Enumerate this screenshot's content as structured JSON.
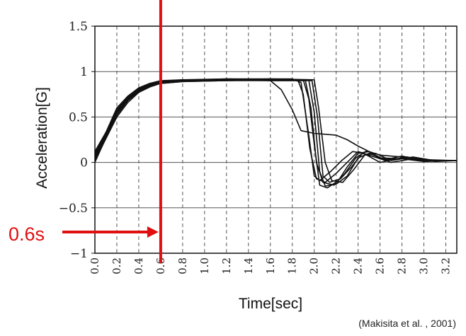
{
  "chart_data": {
    "type": "line",
    "xlabel": "Time[sec]",
    "ylabel": "Acceleration[G]",
    "xlim": [
      0,
      3.3
    ],
    "ylim": [
      -1,
      1.5
    ],
    "x_ticks": [
      "0.0",
      "0.2",
      "0.4",
      "0.6",
      "0.8",
      "1.0",
      "1.2",
      "1.4",
      "1.6",
      "1.8",
      "2.0",
      "2.2",
      "2.4",
      "2.6",
      "2.8",
      "3.0",
      "3.2"
    ],
    "y_ticks": [
      "1.5",
      "1",
      "0.5",
      "0",
      "-0.5",
      "-1"
    ],
    "grid": "dashed vertical every 0.2 s, solid horizontal every 0.5 G",
    "series": [
      {
        "values": [
          [
            0,
            0.05
          ],
          [
            0.1,
            0.3
          ],
          [
            0.2,
            0.55
          ],
          [
            0.3,
            0.7
          ],
          [
            0.4,
            0.8
          ],
          [
            0.5,
            0.85
          ],
          [
            0.6,
            0.88
          ],
          [
            0.8,
            0.9
          ],
          [
            1.0,
            0.9
          ],
          [
            1.4,
            0.91
          ],
          [
            1.6,
            0.9
          ],
          [
            1.7,
            0.8
          ],
          [
            1.8,
            0.58
          ],
          [
            1.88,
            0.35
          ],
          [
            2.0,
            0.32
          ],
          [
            2.1,
            0.31
          ],
          [
            2.2,
            0.3
          ],
          [
            2.3,
            0.25
          ],
          [
            2.4,
            0.18
          ],
          [
            2.5,
            0.12
          ],
          [
            2.6,
            0.08
          ],
          [
            2.8,
            0.06
          ],
          [
            3.0,
            0.03
          ],
          [
            3.3,
            0.02
          ]
        ]
      },
      {
        "values": [
          [
            0,
            0.1
          ],
          [
            0.1,
            0.32
          ],
          [
            0.2,
            0.58
          ],
          [
            0.3,
            0.72
          ],
          [
            0.4,
            0.82
          ],
          [
            0.5,
            0.86
          ],
          [
            0.6,
            0.88
          ],
          [
            0.8,
            0.9
          ],
          [
            1.2,
            0.92
          ],
          [
            1.6,
            0.92
          ],
          [
            1.8,
            0.92
          ],
          [
            1.88,
            0.88
          ],
          [
            1.95,
            0.3
          ],
          [
            2.0,
            -0.15
          ],
          [
            2.05,
            -0.2
          ],
          [
            2.15,
            -0.1
          ],
          [
            2.25,
            0.02
          ],
          [
            2.35,
            0.12
          ],
          [
            2.45,
            0.1
          ],
          [
            2.6,
            0.0
          ],
          [
            2.8,
            0.05
          ],
          [
            3.0,
            0.02
          ],
          [
            3.3,
            0.02
          ]
        ]
      },
      {
        "values": [
          [
            0,
            0.0
          ],
          [
            0.1,
            0.27
          ],
          [
            0.2,
            0.52
          ],
          [
            0.3,
            0.68
          ],
          [
            0.4,
            0.78
          ],
          [
            0.5,
            0.84
          ],
          [
            0.6,
            0.87
          ],
          [
            0.8,
            0.89
          ],
          [
            1.2,
            0.9
          ],
          [
            1.6,
            0.91
          ],
          [
            1.9,
            0.91
          ],
          [
            1.95,
            0.7
          ],
          [
            2.0,
            0.2
          ],
          [
            2.05,
            -0.25
          ],
          [
            2.12,
            -0.28
          ],
          [
            2.22,
            -0.2
          ],
          [
            2.3,
            -0.05
          ],
          [
            2.4,
            0.1
          ],
          [
            2.5,
            0.12
          ],
          [
            2.65,
            0.02
          ],
          [
            2.85,
            0.06
          ],
          [
            3.0,
            0.02
          ],
          [
            3.3,
            0.02
          ]
        ]
      },
      {
        "values": [
          [
            0,
            0.08
          ],
          [
            0.1,
            0.31
          ],
          [
            0.2,
            0.56
          ],
          [
            0.3,
            0.7
          ],
          [
            0.4,
            0.8
          ],
          [
            0.5,
            0.85
          ],
          [
            0.6,
            0.89
          ],
          [
            0.8,
            0.91
          ],
          [
            1.2,
            0.91
          ],
          [
            1.6,
            0.9
          ],
          [
            1.92,
            0.9
          ],
          [
            1.97,
            0.6
          ],
          [
            2.02,
            0.0
          ],
          [
            2.08,
            -0.22
          ],
          [
            2.18,
            -0.25
          ],
          [
            2.28,
            -0.12
          ],
          [
            2.38,
            0.05
          ],
          [
            2.48,
            0.13
          ],
          [
            2.6,
            0.05
          ],
          [
            2.8,
            0.04
          ],
          [
            3.0,
            0.01
          ],
          [
            3.3,
            0.02
          ]
        ]
      },
      {
        "values": [
          [
            0,
            0.04
          ],
          [
            0.1,
            0.29
          ],
          [
            0.2,
            0.54
          ],
          [
            0.3,
            0.69
          ],
          [
            0.4,
            0.79
          ],
          [
            0.5,
            0.85
          ],
          [
            0.6,
            0.88
          ],
          [
            0.8,
            0.9
          ],
          [
            1.2,
            0.9
          ],
          [
            1.6,
            0.91
          ],
          [
            1.95,
            0.91
          ],
          [
            2.0,
            0.55
          ],
          [
            2.05,
            -0.1
          ],
          [
            2.1,
            -0.26
          ],
          [
            2.2,
            -0.24
          ],
          [
            2.3,
            -0.15
          ],
          [
            2.4,
            0.05
          ],
          [
            2.5,
            0.1
          ],
          [
            2.65,
            0.03
          ],
          [
            2.8,
            0.07
          ],
          [
            3.0,
            0.02
          ],
          [
            3.3,
            0.02
          ]
        ]
      },
      {
        "values": [
          [
            0,
            0.12
          ],
          [
            0.1,
            0.33
          ],
          [
            0.2,
            0.6
          ],
          [
            0.3,
            0.73
          ],
          [
            0.4,
            0.82
          ],
          [
            0.5,
            0.87
          ],
          [
            0.6,
            0.9
          ],
          [
            0.8,
            0.91
          ],
          [
            1.2,
            0.92
          ],
          [
            1.6,
            0.91
          ],
          [
            1.85,
            0.91
          ],
          [
            1.9,
            0.75
          ],
          [
            1.96,
            0.15
          ],
          [
            2.02,
            -0.18
          ],
          [
            2.1,
            -0.22
          ],
          [
            2.2,
            -0.12
          ],
          [
            2.3,
            0.0
          ],
          [
            2.4,
            0.12
          ],
          [
            2.5,
            0.08
          ],
          [
            2.7,
            0.0
          ],
          [
            2.9,
            0.04
          ],
          [
            3.1,
            0.02
          ],
          [
            3.3,
            0.02
          ]
        ]
      },
      {
        "values": [
          [
            0,
            0.02
          ],
          [
            0.1,
            0.26
          ],
          [
            0.2,
            0.5
          ],
          [
            0.3,
            0.66
          ],
          [
            0.4,
            0.77
          ],
          [
            0.5,
            0.83
          ],
          [
            0.6,
            0.87
          ],
          [
            0.8,
            0.89
          ],
          [
            1.2,
            0.9
          ],
          [
            1.6,
            0.9
          ],
          [
            1.98,
            0.9
          ],
          [
            2.03,
            0.5
          ],
          [
            2.08,
            -0.15
          ],
          [
            2.14,
            -0.22
          ],
          [
            2.24,
            -0.18
          ],
          [
            2.34,
            -0.05
          ],
          [
            2.44,
            0.1
          ],
          [
            2.55,
            0.06
          ],
          [
            2.7,
            0.03
          ],
          [
            2.9,
            0.05
          ],
          [
            3.1,
            0.01
          ],
          [
            3.3,
            0.02
          ]
        ]
      },
      {
        "values": [
          [
            0,
            0.07
          ],
          [
            0.1,
            0.3
          ],
          [
            0.2,
            0.57
          ],
          [
            0.3,
            0.71
          ],
          [
            0.4,
            0.81
          ],
          [
            0.5,
            0.86
          ],
          [
            0.6,
            0.89
          ],
          [
            0.8,
            0.9
          ],
          [
            1.2,
            0.91
          ],
          [
            1.6,
            0.92
          ],
          [
            2.0,
            0.91
          ],
          [
            2.04,
            0.6
          ],
          [
            2.1,
            0.0
          ],
          [
            2.16,
            -0.2
          ],
          [
            2.26,
            -0.22
          ],
          [
            2.36,
            -0.08
          ],
          [
            2.46,
            0.08
          ],
          [
            2.56,
            0.1
          ],
          [
            2.7,
            0.02
          ],
          [
            2.9,
            0.06
          ],
          [
            3.1,
            0.02
          ],
          [
            3.3,
            0.02
          ]
        ]
      }
    ],
    "line_color": "#111111",
    "marker": {
      "x": 0.6,
      "label": "0.6s",
      "color": "#e01010"
    }
  },
  "citation": "(Makisita et al. , 2001)"
}
